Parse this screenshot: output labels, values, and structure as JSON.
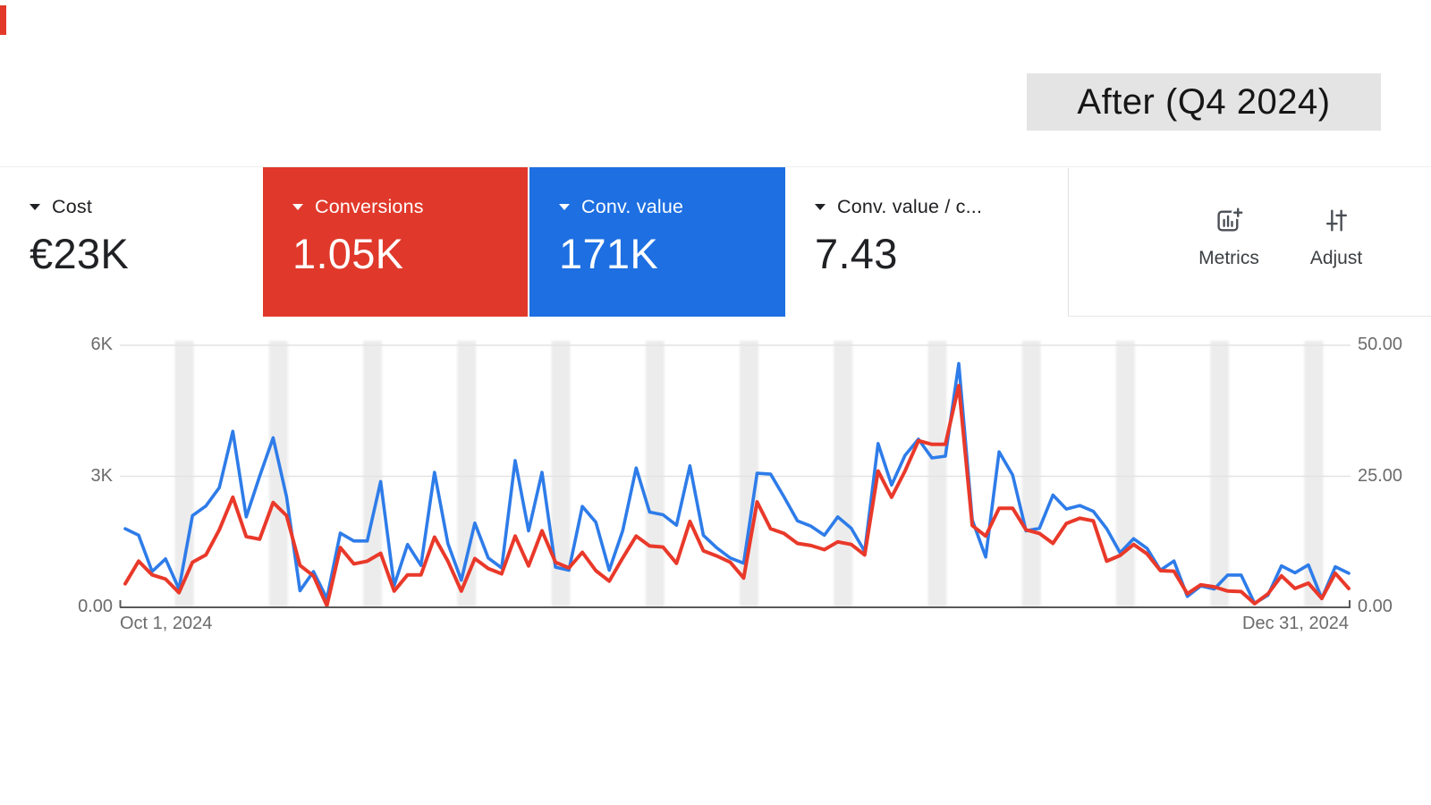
{
  "header": {
    "period_label": "After (Q4 2024)"
  },
  "colors": {
    "conversions_red": "#e0392b",
    "conv_value_blue": "#1d6fe2",
    "line_red": "#e9392a",
    "line_blue": "#2e7ce9",
    "weekend_band": "#ececec",
    "gridline": "#e3e3e3",
    "axis_line": "#5a5a5a",
    "after_box_bg": "#e4e4e4"
  },
  "scorecards": [
    {
      "id": "cost",
      "label": "Cost",
      "value": "€23K",
      "bg": "#ffffff",
      "fg": "#202124",
      "icon": "sort-down-icon"
    },
    {
      "id": "conversions",
      "label": "Conversions",
      "value": "1.05K",
      "bg": "#e0392b",
      "fg": "#ffffff",
      "icon": "sort-down-icon"
    },
    {
      "id": "conv-value",
      "label": "Conv. value",
      "value": "171K",
      "bg": "#1d6fe2",
      "fg": "#ffffff",
      "icon": "sort-down-icon"
    },
    {
      "id": "conv-value-per-cost",
      "label": "Conv. value / c...",
      "value": "7.43",
      "bg": "#ffffff",
      "fg": "#202124",
      "icon": "sort-down-icon"
    }
  ],
  "toolbar": {
    "metrics_label": "Metrics",
    "metrics_icon": "bar-chart-plus-icon",
    "adjust_label": "Adjust",
    "adjust_icon": "sliders-icon"
  },
  "chart_data": {
    "type": "line",
    "days": 92,
    "x_start_label": "Oct 1, 2024",
    "x_end_label": "Dec 31, 2024",
    "left_axis": {
      "ticks": [
        "6K",
        "3K",
        "0.00"
      ],
      "min": 0,
      "max": 6000
    },
    "right_axis": {
      "ticks": [
        "50.00",
        "25.00",
        "0.00"
      ],
      "min": 0,
      "max": 50
    },
    "grid": "horizontal-only",
    "legend": "scorecards-act-as-legend",
    "weekend_bands": {
      "first_center_day": 4.4,
      "interval_days": 7,
      "width_days": 1.4
    },
    "series": [
      {
        "name": "Conv. value",
        "axis": "left",
        "color": "#2e7ce9",
        "values": [
          1800,
          1650,
          820,
          1110,
          420,
          2100,
          2320,
          2740,
          4030,
          2070,
          3000,
          3880,
          2530,
          380,
          820,
          200,
          1700,
          1520,
          1520,
          2880,
          500,
          1440,
          960,
          3090,
          1460,
          620,
          1930,
          1130,
          900,
          3360,
          1750,
          3090,
          920,
          850,
          2310,
          1950,
          850,
          1750,
          3190,
          2180,
          2120,
          1880,
          3240,
          1650,
          1360,
          1130,
          1010,
          3070,
          3050,
          2530,
          1980,
          1860,
          1650,
          2070,
          1810,
          1280,
          3750,
          2800,
          3480,
          3850,
          3420,
          3460,
          5580,
          2000,
          1150,
          3560,
          3030,
          1750,
          1810,
          2570,
          2250,
          2330,
          2200,
          1800,
          1250,
          1570,
          1350,
          850,
          1060,
          250,
          490,
          420,
          740,
          740,
          90,
          280,
          950,
          790,
          970,
          200,
          930,
          780
        ]
      },
      {
        "name": "Conversions",
        "axis": "right",
        "color": "#e9392a",
        "values": [
          4.5,
          8.8,
          6.2,
          5.4,
          2.8,
          8.6,
          10,
          14.8,
          21,
          13.5,
          13,
          20,
          17.5,
          8,
          6,
          0.3,
          11.4,
          8.3,
          8.8,
          10.3,
          3.1,
          6.2,
          6.2,
          13.4,
          8.8,
          3.1,
          9.3,
          7.4,
          6.4,
          13.6,
          7.9,
          14.6,
          8.6,
          7.5,
          10.5,
          7,
          5,
          9.4,
          13.6,
          11.7,
          11.5,
          8.4,
          16.4,
          10.8,
          9.8,
          8.6,
          5.6,
          20.1,
          15,
          14.1,
          12.2,
          11.8,
          11,
          12.5,
          12,
          10,
          26,
          21,
          26,
          31.8,
          31.1,
          31.1,
          42.3,
          15.6,
          13.6,
          18.9,
          18.9,
          14.8,
          14.1,
          12.2,
          16,
          17,
          16.5,
          8.8,
          9.9,
          12,
          10.2,
          7,
          6.9,
          2.6,
          4.3,
          3.9,
          3.1,
          3,
          0.7,
          2.6,
          6,
          3.6,
          4.6,
          1.7,
          6.5,
          3.6
        ]
      }
    ]
  }
}
